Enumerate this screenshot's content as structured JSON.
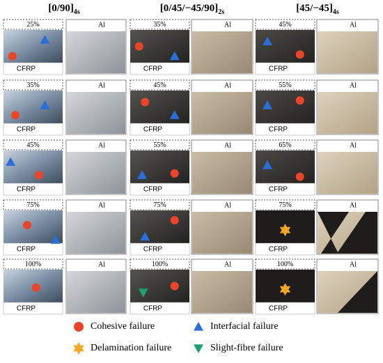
{
  "columns": [
    {
      "header": {
        "main": "[0/90]",
        "sub": "4s"
      },
      "rows": [
        {
          "percent": "25%",
          "cfrp": "CFRP",
          "al": "Al"
        },
        {
          "percent": "35%",
          "cfrp": "CFRP",
          "al": "Al"
        },
        {
          "percent": "45%",
          "cfrp": "CFRP",
          "al": "Al"
        },
        {
          "percent": "75%",
          "cfrp": "CFRP",
          "al": "Al"
        },
        {
          "percent": "100%",
          "cfrp": "CFRP",
          "al": "Al"
        }
      ]
    },
    {
      "header": {
        "main": "[0/45/−45/90]",
        "sub": "2s"
      },
      "rows": [
        {
          "percent": "35%",
          "cfrp": "CFRP",
          "al": "Al"
        },
        {
          "percent": "45%",
          "cfrp": "CFRP",
          "al": "Al"
        },
        {
          "percent": "55%",
          "cfrp": "CFRP",
          "al": "Al"
        },
        {
          "percent": "75%",
          "cfrp": "CFRP",
          "al": "Al"
        },
        {
          "percent": "100%",
          "cfrp": "CFRP",
          "al": "Al"
        }
      ]
    },
    {
      "header": {
        "main": "[45/−45]",
        "sub": "4s"
      },
      "rows": [
        {
          "percent": "45%",
          "cfrp": "CFRP",
          "al": "Al"
        },
        {
          "percent": "55%",
          "cfrp": "CFRP",
          "al": "Al"
        },
        {
          "percent": "65%",
          "cfrp": "CFRP",
          "al": "Al"
        },
        {
          "percent": "75%",
          "cfrp": "CFRP",
          "al": "Al"
        },
        {
          "percent": "100%",
          "cfrp": "CFRP",
          "al": "Al"
        }
      ]
    }
  ],
  "legend": [
    "Cohesive failure",
    "Interfacial failure",
    "Delamination failure",
    "Slight-fibre failure"
  ]
}
